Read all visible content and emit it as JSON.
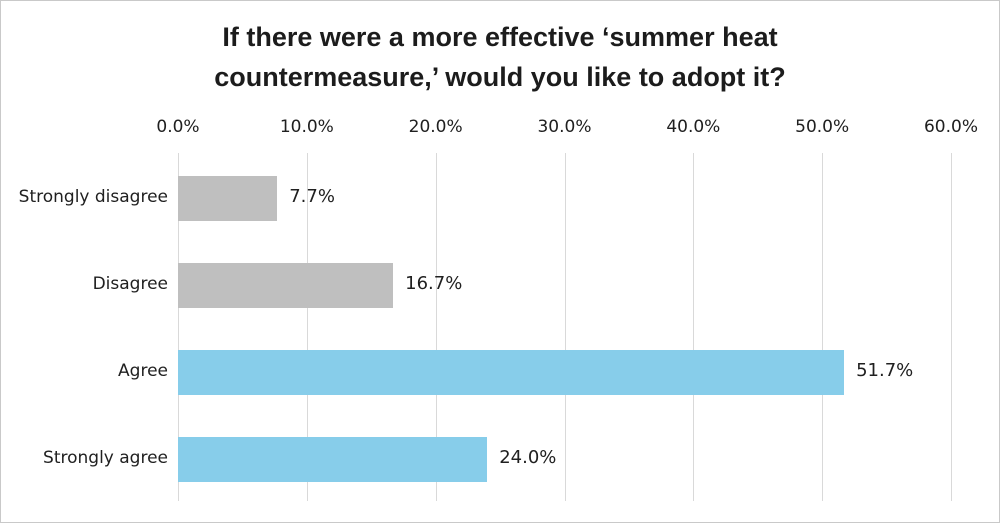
{
  "chart_data": {
    "type": "bar",
    "orientation": "horizontal",
    "title": "If there were a more effective ‘summer heat countermeasure,’ would you like to adopt it?",
    "categories": [
      "Strongly disagree",
      "Disagree",
      "Agree",
      "Strongly agree"
    ],
    "values": [
      7.7,
      16.7,
      51.7,
      24.0
    ],
    "value_labels": [
      "7.7%",
      "16.7%",
      "51.7%",
      "24.0%"
    ],
    "bar_colors": [
      "#bfbfbf",
      "#bfbfbf",
      "#87cdea",
      "#87cdea"
    ],
    "x_ticks": [
      "0.0%",
      "10.0%",
      "20.0%",
      "30.0%",
      "40.0%",
      "50.0%",
      "60.0%"
    ],
    "x_tick_values": [
      0,
      10,
      20,
      30,
      40,
      50,
      60
    ],
    "xlim": [
      0,
      60
    ],
    "xlabel": "",
    "ylabel": "",
    "grid": "vertical",
    "gridline_color": "#d9d9d9",
    "legend": "none",
    "colors": {
      "disagree_bar": "#bfbfbf",
      "agree_bar": "#87cdea",
      "grid": "#d9d9d9",
      "text": "#202020",
      "title_text": "#1c1c1c",
      "frame_border": "#c9c9c9",
      "background": "#ffffff"
    }
  }
}
